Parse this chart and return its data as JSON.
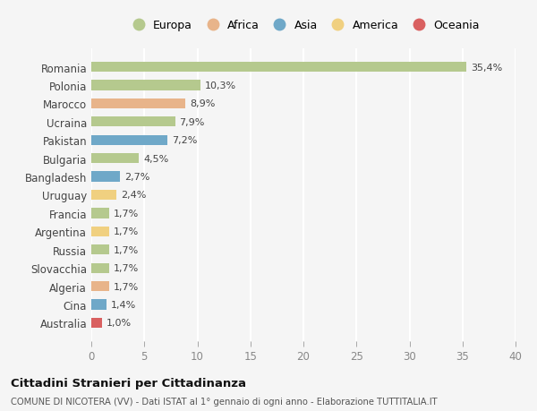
{
  "countries": [
    "Romania",
    "Polonia",
    "Marocco",
    "Ucraina",
    "Pakistan",
    "Bulgaria",
    "Bangladesh",
    "Uruguay",
    "Francia",
    "Argentina",
    "Russia",
    "Slovacchia",
    "Algeria",
    "Cina",
    "Australia"
  ],
  "values": [
    35.4,
    10.3,
    8.9,
    7.9,
    7.2,
    4.5,
    2.7,
    2.4,
    1.7,
    1.7,
    1.7,
    1.7,
    1.7,
    1.4,
    1.0
  ],
  "labels": [
    "35,4%",
    "10,3%",
    "8,9%",
    "7,9%",
    "7,2%",
    "4,5%",
    "2,7%",
    "2,4%",
    "1,7%",
    "1,7%",
    "1,7%",
    "1,7%",
    "1,7%",
    "1,4%",
    "1,0%"
  ],
  "continents": [
    "Europa",
    "Europa",
    "Africa",
    "Europa",
    "Asia",
    "Europa",
    "Asia",
    "America",
    "Europa",
    "America",
    "Europa",
    "Europa",
    "Africa",
    "Asia",
    "Oceania"
  ],
  "continent_colors": {
    "Europa": "#b5c98e",
    "Africa": "#e8b48a",
    "Asia": "#6fa8c8",
    "America": "#f0d080",
    "Oceania": "#d96060"
  },
  "legend_order": [
    "Europa",
    "Africa",
    "Asia",
    "America",
    "Oceania"
  ],
  "title": "Cittadini Stranieri per Cittadinanza",
  "subtitle": "COMUNE DI NICOTERA (VV) - Dati ISTAT al 1° gennaio di ogni anno - Elaborazione TUTTITALIA.IT",
  "xlim": [
    0,
    40
  ],
  "xticks": [
    0,
    5,
    10,
    15,
    20,
    25,
    30,
    35,
    40
  ],
  "background_color": "#f5f5f5",
  "grid_color": "#ffffff",
  "bar_height": 0.55
}
